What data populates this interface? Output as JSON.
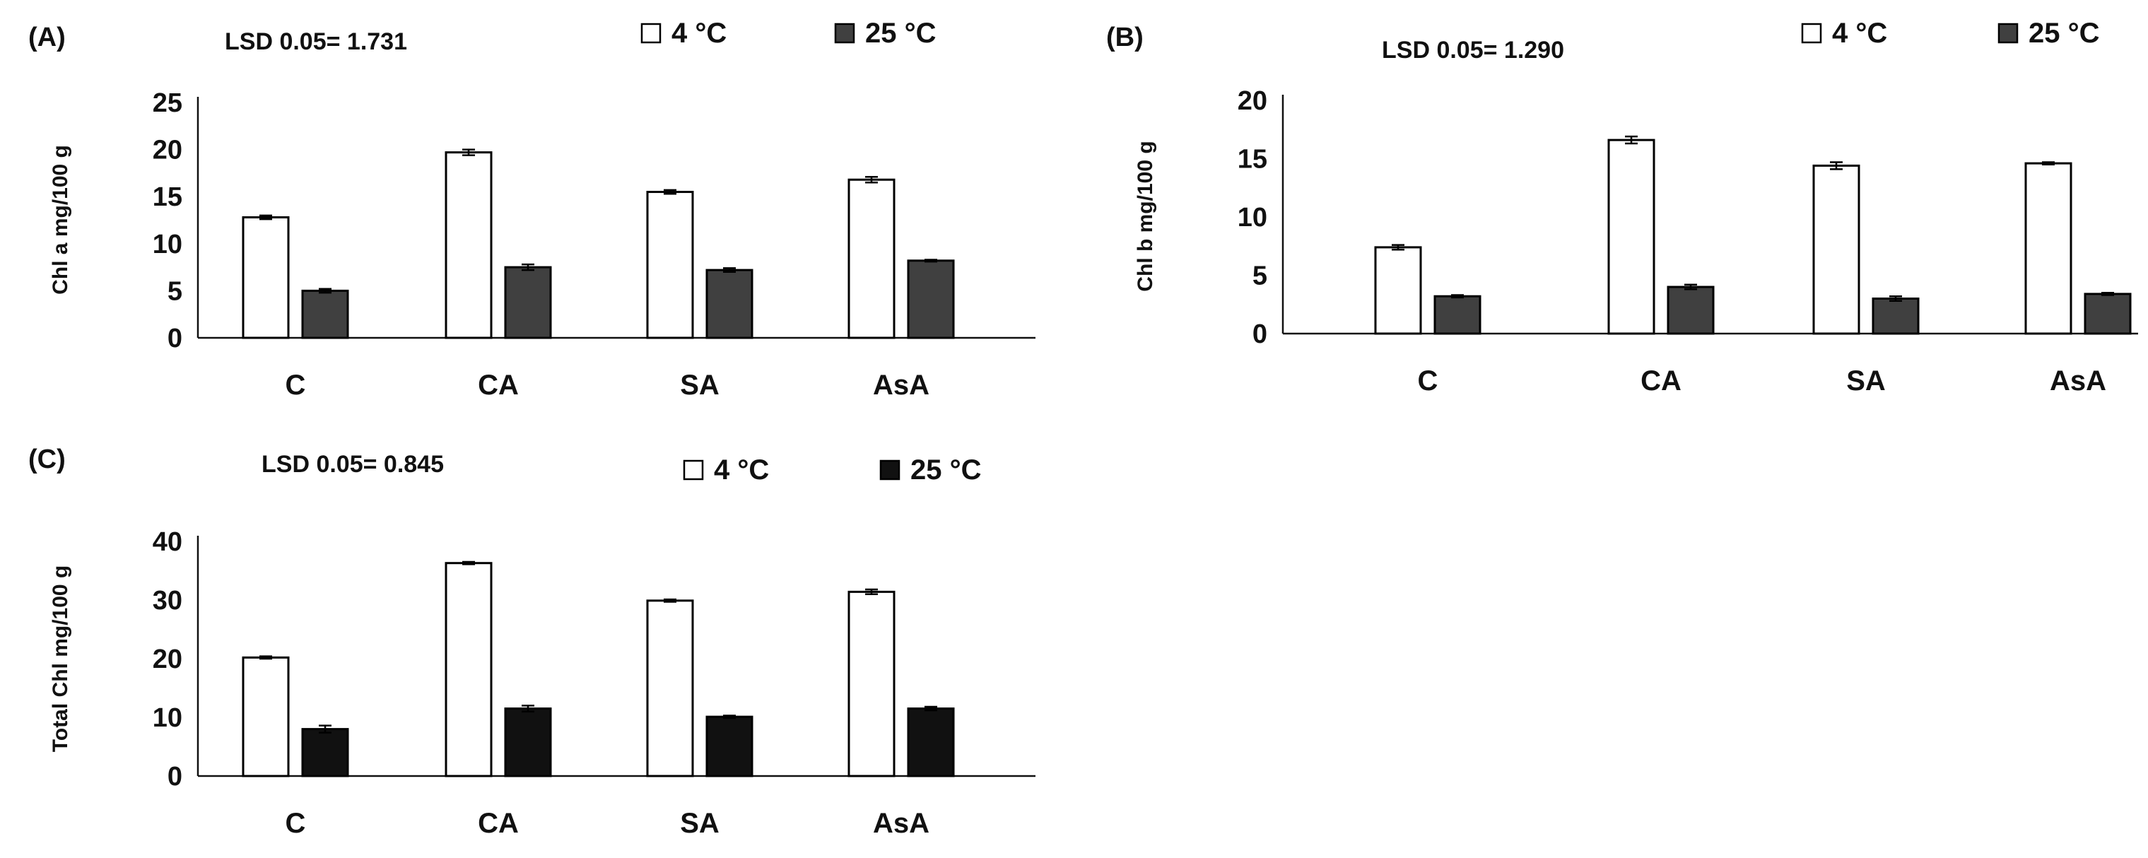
{
  "chart_data": [
    {
      "type": "bar",
      "panel_label": "(A)",
      "lsd": "LSD 0.05= 1.731",
      "legend": [
        "4 °C",
        "25 °C"
      ],
      "ylabel": "Chl a mg/100 g",
      "categories": [
        "C",
        "CA",
        "SA",
        "AsA"
      ],
      "ylim": [
        0,
        25
      ],
      "yticks": [
        "0",
        "5",
        "10",
        "15",
        "20",
        "25"
      ],
      "series": [
        {
          "name": "4 °C",
          "values": [
            12.8,
            19.7,
            15.5,
            16.8
          ],
          "errors": [
            0.2,
            0.3,
            0.2,
            0.3
          ]
        },
        {
          "name": "25 °C",
          "values": [
            5.0,
            7.5,
            7.2,
            8.2
          ],
          "errors": [
            0.2,
            0.3,
            0.2,
            0.1
          ]
        }
      ],
      "colors": [
        "#ffffff",
        "#404040"
      ]
    },
    {
      "type": "bar",
      "panel_label": "(B)",
      "lsd": "LSD 0.05= 1.290",
      "legend": [
        "4 °C",
        "25 °C"
      ],
      "ylabel": "Chl b mg/100 g",
      "categories": [
        "C",
        "CA",
        "SA",
        "AsA"
      ],
      "ylim": [
        0,
        20
      ],
      "yticks": [
        "0",
        "5",
        "10",
        "15",
        "20"
      ],
      "series": [
        {
          "name": "4 °C",
          "values": [
            7.4,
            16.6,
            14.4,
            14.6
          ],
          "errors": [
            0.2,
            0.3,
            0.3,
            0.1
          ]
        },
        {
          "name": "25 °C",
          "values": [
            3.2,
            4.0,
            3.0,
            3.4
          ],
          "errors": [
            0.1,
            0.2,
            0.2,
            0.1
          ]
        }
      ],
      "colors": [
        "#ffffff",
        "#404040"
      ]
    },
    {
      "type": "bar",
      "panel_label": "(C)",
      "lsd": "LSD 0.05= 0.845",
      "legend": [
        "4 °C",
        "25 °C"
      ],
      "ylabel": "Total Chl  mg/100 g",
      "categories": [
        "C",
        "CA",
        "SA",
        "AsA"
      ],
      "ylim": [
        0,
        40
      ],
      "yticks": [
        "0",
        "10",
        "20",
        "30",
        "40"
      ],
      "series": [
        {
          "name": "4 °C",
          "values": [
            20.2,
            36.3,
            29.9,
            31.4
          ],
          "errors": [
            0.2,
            0.2,
            0.2,
            0.4
          ]
        },
        {
          "name": "25 °C",
          "values": [
            8.0,
            11.5,
            10.1,
            11.5
          ],
          "errors": [
            0.6,
            0.5,
            0.2,
            0.3
          ]
        }
      ],
      "colors": [
        "#ffffff",
        "#111111"
      ]
    }
  ]
}
